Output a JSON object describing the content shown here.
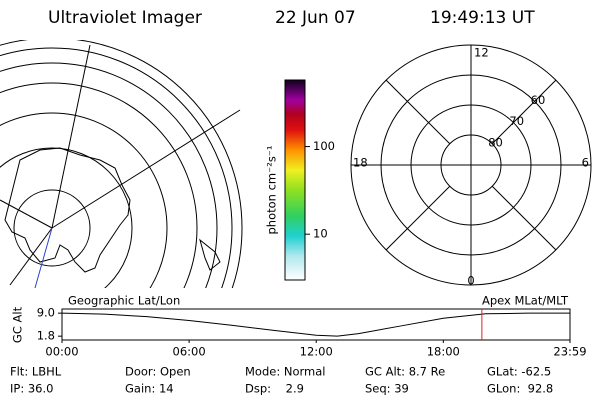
{
  "header": {
    "title": "Ultraviolet Imager",
    "date": "22 Jun 07",
    "time": "19:49:13 UT"
  },
  "colorbar": {
    "label": "photon cm⁻²s⁻¹",
    "log_scale": true,
    "zlim": [
      3,
      575
    ],
    "ticks": [
      10,
      100
    ]
  },
  "polar": {
    "rlim": [
      90,
      50
    ],
    "lat_ticks": [
      80,
      70,
      60
    ],
    "mlt_labels": [
      "12",
      "18",
      "6",
      "0"
    ]
  },
  "chart_data": {
    "type": "line",
    "ylabel": "GC Alt",
    "left_label": "Geographic Lat/Lon",
    "right_label": "Apex MLat/MLT",
    "x": [
      0,
      2,
      4,
      6,
      8,
      10,
      12,
      13,
      14,
      16,
      18,
      20,
      22,
      23.98
    ],
    "values": [
      9.0,
      8.7,
      7.9,
      6.7,
      5.2,
      3.6,
      2.1,
      1.8,
      2.6,
      5.0,
      7.4,
      8.8,
      9.0,
      9.0
    ],
    "color": "#000000",
    "marker_x": 19.82,
    "marker_color": "#e02020",
    "xlim": [
      0,
      23.98
    ],
    "ylim": [
      0.6,
      10.3
    ],
    "xticks": [
      {
        "value": 0,
        "label": "00:00"
      },
      {
        "value": 6,
        "label": "06:00"
      },
      {
        "value": 12,
        "label": "12:00"
      },
      {
        "value": 18,
        "label": "18:00"
      },
      {
        "value": 23.98,
        "label": "23:59"
      }
    ],
    "yticks": [
      {
        "value": 9.0,
        "label": "9.0"
      },
      1.8
    ]
  },
  "footer": {
    "rows": [
      [
        "Flt: LBHL",
        "Door: Open",
        "Mode: Normal",
        "GC Alt: 8.7 Re",
        "GLat: -62.5"
      ],
      [
        "IP: 36.0",
        "Gain: 14",
        "Dsp:    2.9",
        "Seq: 39",
        "GLon:  92.8"
      ]
    ]
  }
}
